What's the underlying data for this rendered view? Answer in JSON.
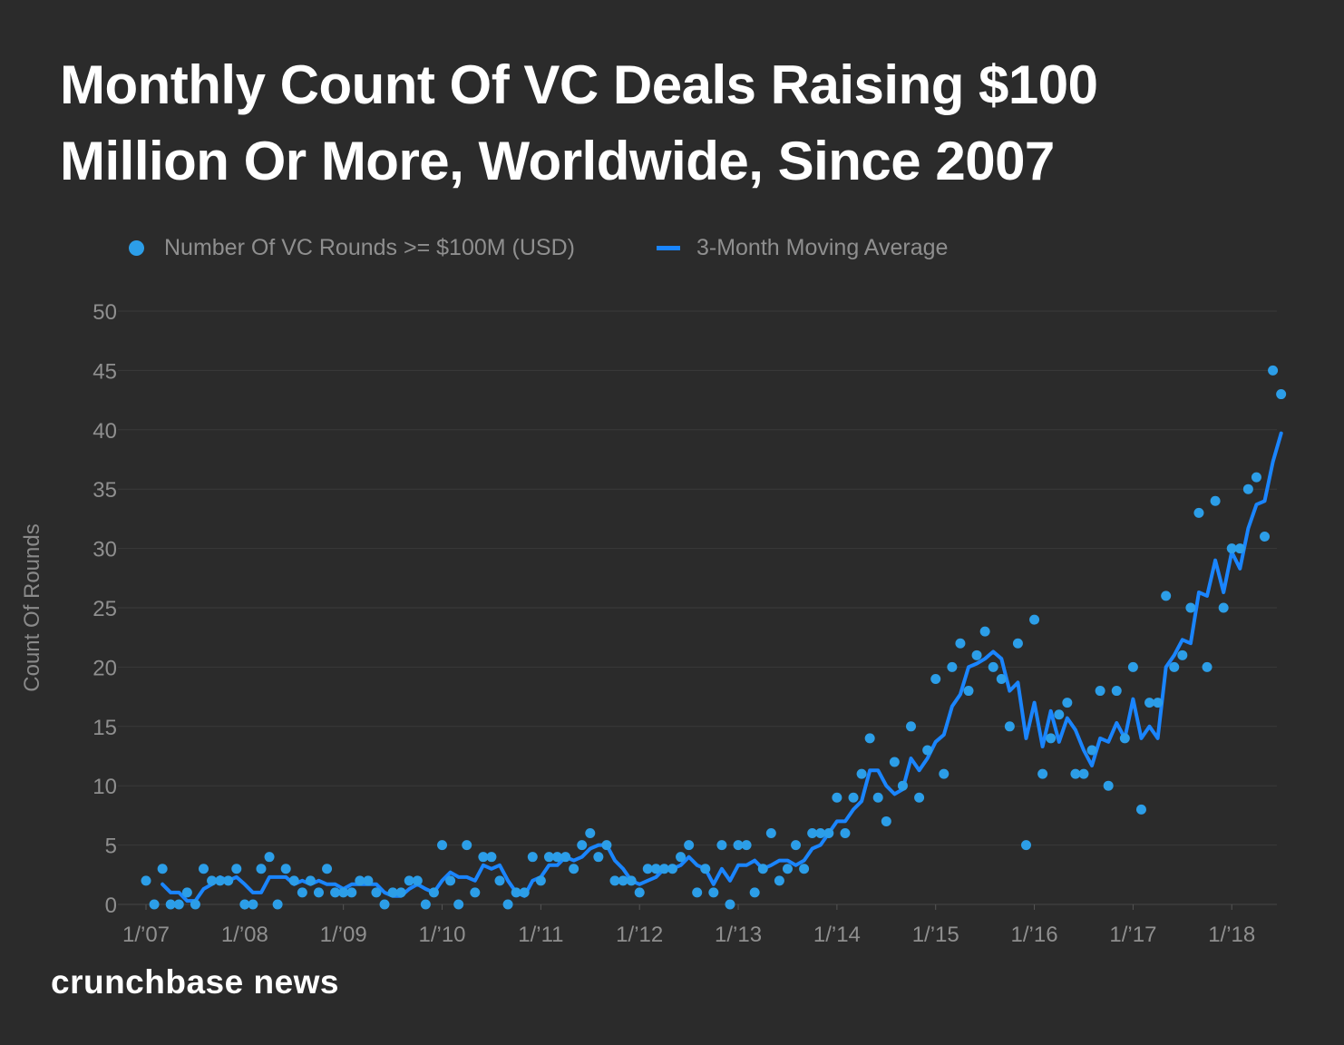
{
  "title_line1": "Monthly Count Of VC Deals Raising $100",
  "title_line2": "Million Or More, Worldwide, Since 2007",
  "brand": "crunchbase news",
  "colors": {
    "background": "#2b2b2b",
    "dots": "#2c9ee8",
    "line": "#1a85ff",
    "grid": "#3b3b3b",
    "text": "#8f8f8f"
  },
  "chart_data": {
    "type": "line",
    "legend_position": "top",
    "grid": true,
    "ylabel": "Count Of Rounds",
    "xlabel": "",
    "ylim": [
      0,
      50
    ],
    "y_ticks": [
      0,
      5,
      10,
      15,
      20,
      25,
      30,
      35,
      40,
      45,
      50
    ],
    "x_tick_labels": [
      "1/’07",
      "1/’08",
      "1/’09",
      "1/’10",
      "1/’11",
      "1/’12",
      "1/’13",
      "1/’14",
      "1/’15",
      "1/’16",
      "1/’17",
      "1/’18"
    ],
    "x_start_label": "1/’07",
    "series": [
      {
        "name": "Number Of VC Rounds >= $100M (USD)",
        "style": "scatter",
        "values": [
          2,
          0,
          3,
          0,
          0,
          1,
          0,
          3,
          2,
          2,
          2,
          3,
          0,
          0,
          3,
          4,
          0,
          3,
          2,
          1,
          2,
          1,
          3,
          1,
          1,
          1,
          2,
          2,
          1,
          0,
          1,
          1,
          2,
          2,
          0,
          1,
          5,
          2,
          0,
          5,
          1,
          4,
          4,
          2,
          0,
          1,
          1,
          4,
          2,
          4,
          4,
          4,
          3,
          5,
          6,
          4,
          5,
          2,
          2,
          2,
          1,
          3,
          3,
          3,
          3,
          4,
          5,
          1,
          3,
          1,
          5,
          0,
          5,
          5,
          1,
          3,
          6,
          2,
          3,
          5,
          3,
          6,
          6,
          6,
          9,
          6,
          9,
          11,
          14,
          9,
          7,
          12,
          10,
          15,
          9,
          13,
          19,
          11,
          20,
          22,
          18,
          21,
          23,
          20,
          19,
          15,
          22,
          5,
          24,
          11,
          14,
          16,
          17,
          11,
          11,
          13,
          18,
          10,
          18,
          14,
          20,
          8,
          17,
          17,
          26,
          20,
          21,
          25,
          33,
          20,
          34,
          25,
          30,
          30,
          35,
          36,
          31,
          45,
          43
        ]
      },
      {
        "name": "3-Month Moving Average",
        "style": "line",
        "values": [
          null,
          null,
          1.7,
          1.0,
          1.0,
          0.3,
          0.3,
          1.3,
          1.7,
          2.3,
          2.0,
          2.3,
          1.7,
          1.0,
          1.0,
          2.3,
          2.3,
          2.3,
          1.7,
          2.0,
          1.7,
          2.0,
          1.7,
          1.7,
          1.3,
          1.7,
          1.7,
          1.7,
          1.7,
          1.0,
          0.7,
          0.7,
          1.3,
          1.7,
          1.3,
          1.0,
          2.0,
          2.7,
          2.3,
          2.3,
          2.0,
          3.3,
          3.0,
          3.3,
          2.0,
          1.0,
          0.7,
          2.0,
          2.3,
          3.3,
          3.3,
          4.0,
          3.7,
          4.0,
          4.7,
          5.0,
          5.0,
          3.7,
          3.0,
          2.0,
          1.7,
          2.0,
          2.3,
          3.0,
          3.0,
          3.3,
          4.0,
          3.3,
          3.0,
          1.7,
          3.0,
          2.0,
          3.3,
          3.3,
          3.7,
          3.0,
          3.3,
          3.7,
          3.7,
          3.3,
          3.7,
          4.7,
          5.0,
          6.0,
          7.0,
          7.0,
          8.0,
          8.7,
          11.3,
          11.3,
          10.0,
          9.3,
          9.7,
          12.3,
          11.3,
          12.3,
          13.7,
          14.3,
          16.7,
          17.7,
          20.0,
          20.3,
          20.7,
          21.3,
          20.7,
          18.0,
          18.7,
          14.0,
          17.0,
          13.3,
          16.3,
          13.7,
          15.7,
          14.7,
          13.0,
          11.7,
          14.0,
          13.7,
          15.3,
          14.0,
          17.3,
          14.0,
          15.0,
          14.0,
          20.0,
          21.0,
          22.3,
          22.0,
          26.3,
          26.0,
          29.0,
          26.3,
          29.7,
          28.3,
          31.7,
          33.7,
          34.0,
          37.3,
          39.7
        ]
      }
    ]
  }
}
